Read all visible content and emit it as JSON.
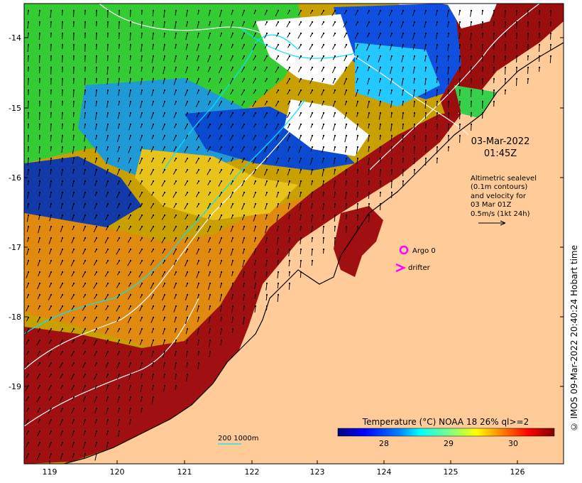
{
  "map": {
    "date": "03-Mar-2022",
    "time": "01:45Z",
    "altimetry_lines": [
      "Altimetric sealevel",
      "(0.1m contours)",
      "and velocity for",
      "03 Mar 01Z",
      "0.5m/s (1kt 24h)"
    ],
    "legend_items": {
      "argo": "Argo 0",
      "drifter": "drifter"
    },
    "scale_label": "200  1000m",
    "colorbar": {
      "title": "Temperature (°C) NOAA 18 26% ql>=2",
      "ticks": [
        "28",
        "29",
        "30"
      ],
      "colors": [
        "#00007f",
        "#0000ff",
        "#007fff",
        "#00ffff",
        "#7fff7f",
        "#ffff00",
        "#ff7f00",
        "#ff0000",
        "#7f0000"
      ]
    },
    "x_axis": {
      "ticks": [
        "119",
        "120",
        "121",
        "122",
        "123",
        "124",
        "125",
        "126"
      ]
    },
    "y_axis": {
      "ticks": [
        "-14",
        "-15",
        "-16",
        "-17",
        "-18",
        "-19"
      ]
    },
    "credit": "© IMOS 09-Mar-2022 20:40:24 Hobart time",
    "colors": {
      "land": "#ffcc99",
      "cloud": "#ffffff",
      "argo": "#ff00ff",
      "drifter": "#ff00ff",
      "contour": "#ffffff",
      "bathymetry": "#00e5ff"
    }
  }
}
